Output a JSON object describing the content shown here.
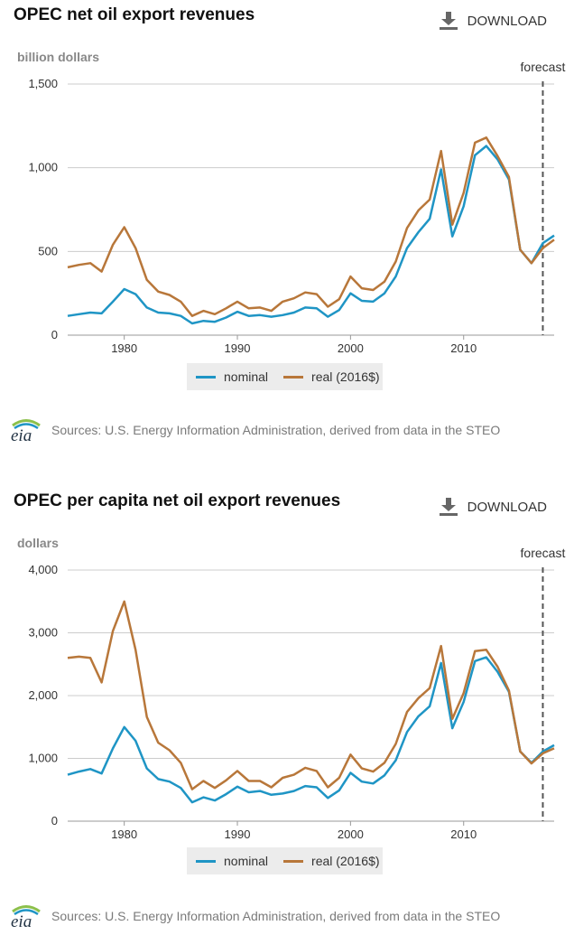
{
  "colors": {
    "nominal": "#1f95c5",
    "real": "#b8773a",
    "grid": "#cccccc",
    "forecast_line": "#555555"
  },
  "download_label": "DOWNLOAD",
  "legend": {
    "nominal": "nominal",
    "real": "real (2016$)"
  },
  "source_text": "Sources: U.S. Energy Information Administration, derived from data in the STEO",
  "logo_text": "eia",
  "chart_data": [
    {
      "type": "line",
      "title": "OPEC net oil export revenues",
      "ylabel": "billion dollars",
      "xlim": [
        1975,
        2018
      ],
      "ylim": [
        0,
        1500
      ],
      "yticks": [
        0,
        500,
        1000,
        1500
      ],
      "ytick_labels": [
        "0",
        "500",
        "1,000",
        "1,500"
      ],
      "xticks": [
        1980,
        1990,
        2000,
        2010
      ],
      "xtick_labels": [
        "1980",
        "1990",
        "2000",
        "2010"
      ],
      "grid": true,
      "legend_position": "bottom",
      "forecast": {
        "label": "forecast",
        "x": 2017
      },
      "x": [
        1975,
        1976,
        1977,
        1978,
        1979,
        1980,
        1981,
        1982,
        1983,
        1984,
        1985,
        1986,
        1987,
        1988,
        1989,
        1990,
        1991,
        1992,
        1993,
        1994,
        1995,
        1996,
        1997,
        1998,
        1999,
        2000,
        2001,
        2002,
        2003,
        2004,
        2005,
        2006,
        2007,
        2008,
        2009,
        2010,
        2011,
        2012,
        2013,
        2014,
        2015,
        2016,
        2017,
        2018
      ],
      "series": [
        {
          "name": "nominal",
          "color_key": "nominal",
          "values": [
            115,
            125,
            135,
            130,
            200,
            275,
            245,
            165,
            135,
            130,
            115,
            70,
            85,
            80,
            105,
            140,
            115,
            120,
            110,
            120,
            135,
            165,
            160,
            110,
            150,
            250,
            205,
            200,
            250,
            350,
            520,
            615,
            695,
            990,
            590,
            770,
            1075,
            1130,
            1050,
            930,
            510,
            430,
            550,
            595
          ]
        },
        {
          "name": "real (2016$)",
          "color_key": "real",
          "values": [
            405,
            420,
            430,
            380,
            540,
            645,
            520,
            330,
            260,
            240,
            200,
            115,
            145,
            125,
            160,
            200,
            160,
            165,
            145,
            200,
            220,
            255,
            245,
            170,
            215,
            350,
            280,
            270,
            320,
            440,
            640,
            745,
            810,
            1100,
            660,
            850,
            1150,
            1180,
            1070,
            945,
            510,
            430,
            520,
            570
          ]
        }
      ]
    },
    {
      "type": "line",
      "title": "OPEC per capita net oil export revenues",
      "ylabel": "dollars",
      "xlim": [
        1975,
        2018
      ],
      "ylim": [
        0,
        4000
      ],
      "yticks": [
        0,
        1000,
        2000,
        3000,
        4000
      ],
      "ytick_labels": [
        "0",
        "1,000",
        "2,000",
        "3,000",
        "4,000"
      ],
      "xticks": [
        1980,
        1990,
        2000,
        2010
      ],
      "xtick_labels": [
        "1980",
        "1990",
        "2000",
        "2010"
      ],
      "grid": true,
      "legend_position": "bottom",
      "forecast": {
        "label": "forecast",
        "x": 2017
      },
      "x": [
        1975,
        1976,
        1977,
        1978,
        1979,
        1980,
        1981,
        1982,
        1983,
        1984,
        1985,
        1986,
        1987,
        1988,
        1989,
        1990,
        1991,
        1992,
        1993,
        1994,
        1995,
        1996,
        1997,
        1998,
        1999,
        2000,
        2001,
        2002,
        2003,
        2004,
        2005,
        2006,
        2007,
        2008,
        2009,
        2010,
        2011,
        2012,
        2013,
        2014,
        2015,
        2016,
        2017,
        2018
      ],
      "series": [
        {
          "name": "nominal",
          "color_key": "nominal",
          "values": [
            740,
            790,
            830,
            760,
            1160,
            1500,
            1280,
            840,
            670,
            630,
            530,
            300,
            380,
            330,
            430,
            550,
            460,
            480,
            420,
            440,
            480,
            560,
            540,
            370,
            490,
            770,
            630,
            600,
            730,
            970,
            1420,
            1670,
            1830,
            2520,
            1480,
            1900,
            2550,
            2610,
            2380,
            2060,
            1110,
            930,
            1110,
            1210
          ]
        },
        {
          "name": "real (2016$)",
          "color_key": "real",
          "values": [
            2600,
            2620,
            2600,
            2210,
            3030,
            3500,
            2730,
            1660,
            1250,
            1130,
            930,
            510,
            640,
            530,
            650,
            800,
            640,
            640,
            540,
            690,
            740,
            850,
            800,
            540,
            690,
            1060,
            840,
            790,
            930,
            1230,
            1740,
            1960,
            2120,
            2790,
            1630,
            2040,
            2710,
            2730,
            2460,
            2080,
            1110,
            920,
            1080,
            1160
          ]
        }
      ]
    }
  ]
}
